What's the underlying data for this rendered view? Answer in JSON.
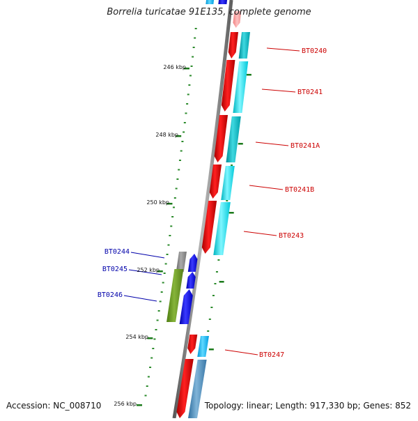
{
  "title": "Borrelia turicatae 91E135, complete genome",
  "accession": "Accession: NC_008710",
  "topology": "Topology: linear; Length: 917,330 bp; Genes: 852",
  "ticks": [
    {
      "label": "246 kbp",
      "kbp": 246
    },
    {
      "label": "248 kbp",
      "kbp": 248
    },
    {
      "label": "250 kbp",
      "kbp": 250
    },
    {
      "label": "252 kbp",
      "kbp": 252
    },
    {
      "label": "254 kbp",
      "kbp": 254
    },
    {
      "label": "256 kbp",
      "kbp": 256
    }
  ],
  "genes_right": [
    {
      "label": "BT0240",
      "color": "#cc0000"
    },
    {
      "label": "BT0241",
      "color": "#cc0000"
    },
    {
      "label": "BT0241A",
      "color": "#cc0000"
    },
    {
      "label": "BT0241B",
      "color": "#cc0000"
    },
    {
      "label": "BT0243",
      "color": "#cc0000"
    },
    {
      "label": "BT0247",
      "color": "#cc0000"
    }
  ],
  "genes_left": [
    {
      "label": "BT0244",
      "color": "#0000aa"
    },
    {
      "label": "BT0245",
      "color": "#0000aa"
    },
    {
      "label": "BT0246",
      "color": "#0000aa"
    }
  ]
}
